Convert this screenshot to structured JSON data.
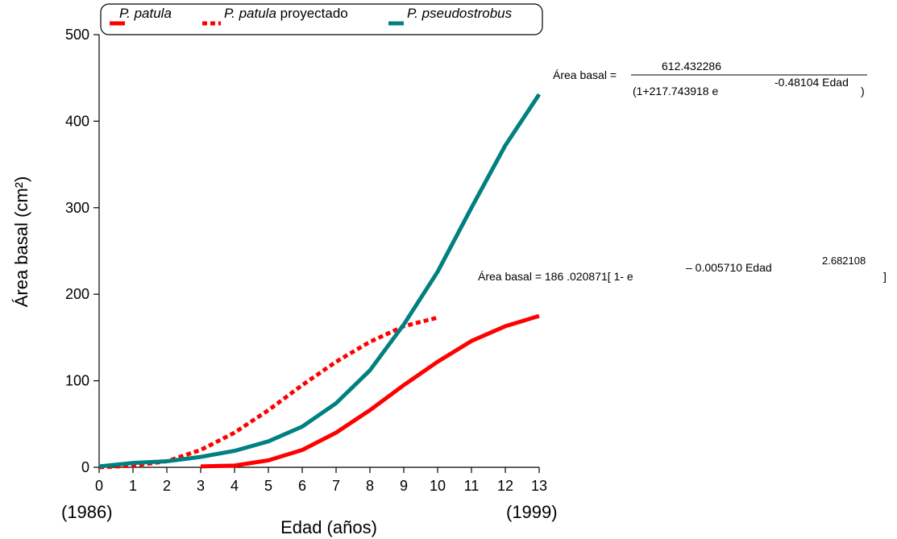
{
  "chart_data": {
    "type": "line",
    "xlabel": "Edad  (años)",
    "ylabel": "Área basal  (cm²)",
    "xlim": [
      0,
      13
    ],
    "ylim": [
      0,
      500
    ],
    "x_ticks": [
      "0",
      "1",
      "2",
      "3",
      "4",
      "5",
      "6",
      "7",
      "8",
      "9",
      "10",
      "11",
      "12",
      "13"
    ],
    "y_ticks": [
      "0",
      "100",
      "200",
      "300",
      "400",
      "500"
    ],
    "x_year_start": "(1986)",
    "x_year_end": "(1999)",
    "grid": false,
    "legend": {
      "placement": "top",
      "items": [
        {
          "italic": "P. patula",
          "suffix": ""
        },
        {
          "italic": "P. patula",
          "suffix": " proyectado"
        },
        {
          "italic": "P. pseudostrobus",
          "suffix": ""
        }
      ]
    },
    "series": [
      {
        "color": "#ff0000",
        "style": "solid",
        "x": [
          3,
          4,
          5,
          6,
          7,
          8,
          9,
          10,
          11,
          12,
          13
        ],
        "y": [
          1,
          2,
          8,
          20,
          40,
          66,
          95,
          122,
          146,
          163,
          175
        ]
      },
      {
        "color": "#ff0000",
        "style": "dotted",
        "x": [
          0,
          1,
          2,
          3,
          4,
          5,
          6,
          7,
          8,
          9,
          10
        ],
        "y": [
          0,
          2,
          7,
          20,
          40,
          66,
          95,
          122,
          145,
          163,
          173
        ]
      },
      {
        "color": "#008080",
        "style": "solid",
        "x": [
          0,
          1,
          2,
          3,
          4,
          5,
          6,
          7,
          8,
          9,
          10,
          11,
          12,
          13
        ],
        "y": [
          1,
          5,
          7,
          12,
          19,
          30,
          47,
          74,
          112,
          165,
          226,
          300,
          372,
          431
        ]
      }
    ],
    "annotations": {
      "eq1_lhs": "Área  basal =",
      "eq1_num": "612.432286",
      "eq1_den_a": "(1+217.743918 e",
      "eq1_den_exp": "-0.48104 Edad",
      "eq1_den_close": ")",
      "eq2_lhs": "Área   basal  = 186 .020871[  1- e",
      "eq2_exp": "– 0.005710 Edad",
      "eq2_exp2": "2.682108",
      "eq2_close": "]"
    }
  }
}
